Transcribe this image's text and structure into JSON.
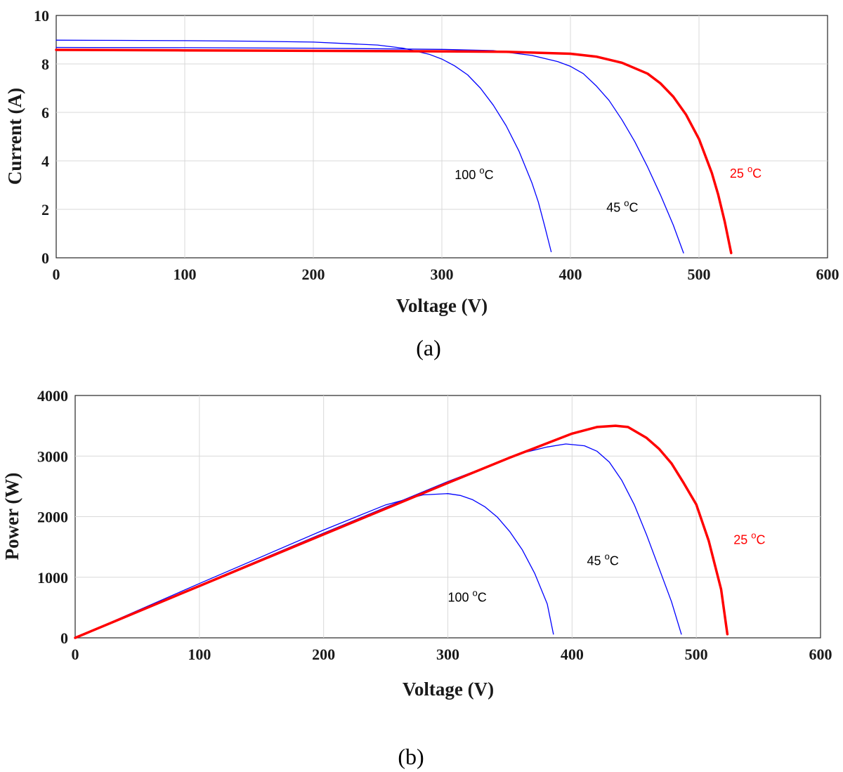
{
  "chart_data": [
    {
      "type": "line",
      "panel_label": "(a)",
      "xlabel": "Voltage (V)",
      "ylabel": "Current (A)",
      "xlim": [
        0,
        600
      ],
      "ylim": [
        0,
        10
      ],
      "xticks": [
        "0",
        "100",
        "200",
        "300",
        "400",
        "500",
        "600"
      ],
      "yticks": [
        "0",
        "2",
        "4",
        "6",
        "8",
        "10"
      ],
      "grid": true,
      "colors": {
        "hot": "#0000ff",
        "warm": "#0000ff",
        "ref": "#ff0000"
      },
      "annotations": [
        {
          "text": "100 ",
          "sup": "o",
          "unit": "C",
          "color": "#000000",
          "x": 310,
          "y": 3.25
        },
        {
          "text": "45 ",
          "sup": "o",
          "unit": "C",
          "color": "#000000",
          "x": 428,
          "y": 1.9
        },
        {
          "text": "25 ",
          "sup": "o",
          "unit": "C",
          "color": "#ff0000",
          "x": 524,
          "y": 3.3
        }
      ],
      "series": [
        {
          "color": "#0000ff",
          "width": 1.3,
          "x": [
            0,
            50,
            100,
            150,
            200,
            250,
            270,
            290,
            300,
            310,
            320,
            330,
            340,
            350,
            360,
            370,
            375,
            380,
            385
          ],
          "y": [
            8.98,
            8.97,
            8.96,
            8.94,
            8.9,
            8.78,
            8.65,
            8.4,
            8.2,
            7.92,
            7.55,
            7.0,
            6.3,
            5.45,
            4.4,
            3.1,
            2.3,
            1.3,
            0.25
          ]
        },
        {
          "color": "#0000ff",
          "width": 1.3,
          "x": [
            0,
            100,
            200,
            300,
            340,
            370,
            390,
            400,
            410,
            420,
            430,
            440,
            450,
            460,
            470,
            480,
            488
          ],
          "y": [
            8.68,
            8.67,
            8.65,
            8.6,
            8.55,
            8.35,
            8.1,
            7.9,
            7.6,
            7.1,
            6.5,
            5.7,
            4.8,
            3.75,
            2.6,
            1.35,
            0.2
          ]
        },
        {
          "color": "#ff0000",
          "width": 3.5,
          "x": [
            0,
            100,
            200,
            300,
            350,
            400,
            420,
            440,
            460,
            470,
            480,
            490,
            500,
            510,
            515,
            520,
            525
          ],
          "y": [
            8.58,
            8.56,
            8.54,
            8.52,
            8.5,
            8.42,
            8.3,
            8.05,
            7.6,
            7.2,
            6.65,
            5.9,
            4.9,
            3.5,
            2.6,
            1.5,
            0.2
          ]
        }
      ]
    },
    {
      "type": "line",
      "panel_label": "(b)",
      "xlabel": "Voltage (V)",
      "ylabel": "Power (W)",
      "xlim": [
        0,
        600
      ],
      "ylim": [
        0,
        4000
      ],
      "xticks": [
        "0",
        "100",
        "200",
        "300",
        "400",
        "500",
        "600"
      ],
      "yticks": [
        "0",
        "1000",
        "2000",
        "3000",
        "4000"
      ],
      "grid": true,
      "colors": {
        "hot": "#0000ff",
        "warm": "#0000ff",
        "ref": "#ff0000"
      },
      "annotations": [
        {
          "text": "100 ",
          "sup": "o",
          "unit": "C",
          "color": "#000000",
          "x": 300,
          "y": 600
        },
        {
          "text": "45 ",
          "sup": "o",
          "unit": "C",
          "color": "#000000",
          "x": 412,
          "y": 1200
        },
        {
          "text": "25 ",
          "sup": "o",
          "unit": "C",
          "color": "#ff0000",
          "x": 530,
          "y": 1550
        }
      ],
      "series": [
        {
          "color": "#0000ff",
          "width": 1.3,
          "x": [
            0,
            100,
            200,
            250,
            280,
            300,
            310,
            320,
            330,
            340,
            350,
            360,
            370,
            380,
            385
          ],
          "y": [
            0,
            896,
            1780,
            2195,
            2360,
            2380,
            2350,
            2280,
            2160,
            1990,
            1750,
            1450,
            1060,
            560,
            60
          ]
        },
        {
          "color": "#0000ff",
          "width": 1.3,
          "x": [
            0,
            100,
            200,
            300,
            360,
            380,
            395,
            410,
            420,
            430,
            440,
            450,
            460,
            470,
            480,
            488
          ],
          "y": [
            0,
            867,
            1730,
            2580,
            3050,
            3150,
            3200,
            3170,
            3080,
            2900,
            2600,
            2200,
            1700,
            1150,
            600,
            60
          ]
        },
        {
          "color": "#ff0000",
          "width": 3.5,
          "x": [
            0,
            100,
            200,
            300,
            350,
            400,
            420,
            435,
            445,
            460,
            470,
            480,
            490,
            500,
            510,
            520,
            525
          ],
          "y": [
            0,
            856,
            1708,
            2556,
            2975,
            3370,
            3480,
            3500,
            3480,
            3300,
            3120,
            2880,
            2550,
            2200,
            1600,
            800,
            60
          ]
        }
      ]
    }
  ]
}
